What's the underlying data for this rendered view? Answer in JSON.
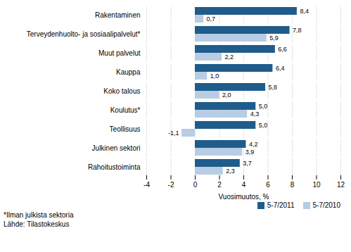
{
  "chart_data": {
    "type": "bar",
    "orientation": "horizontal",
    "categories": [
      "Rahoitustoiminta",
      "Julkinen sektori",
      "Teollisuus",
      "Koulutus*",
      "Koko talous",
      "Kauppa",
      "Muut palvelut",
      "Terveydenhuolto- ja sosiaalipalvelut*",
      "Rakentaminen"
    ],
    "series": [
      {
        "name": "5-7/2011",
        "color": "#1F5C8B",
        "values": [
          3.7,
          4.2,
          5.0,
          5.0,
          5.8,
          6.4,
          6.6,
          7.8,
          8.4
        ],
        "value_labels": [
          "3,7",
          "4,2",
          "5,0",
          "5,0",
          "5,8",
          "6,4",
          "6,6",
          "7,8",
          "8,4"
        ]
      },
      {
        "name": "5-7/2010",
        "color": "#B8CCE4",
        "values": [
          2.3,
          3.9,
          -1.1,
          4.3,
          2.0,
          1.0,
          2.2,
          5.9,
          0.7
        ],
        "value_labels": [
          "2,3",
          "3,9",
          "-1,1",
          "4,3",
          "2,0",
          "1,0",
          "2,2",
          "5,9",
          "0,7"
        ]
      }
    ],
    "xlabel": "Vuosimuutos, %",
    "xlim": [
      -4,
      12
    ],
    "xticks": [
      -4,
      -2,
      0,
      2,
      4,
      6,
      8,
      10,
      12
    ],
    "grid": true,
    "legend": "lower right",
    "data_labels": true,
    "annotations": [
      "*Ilman julkista sektoria",
      "Lähde: Tilastokeskus"
    ]
  }
}
